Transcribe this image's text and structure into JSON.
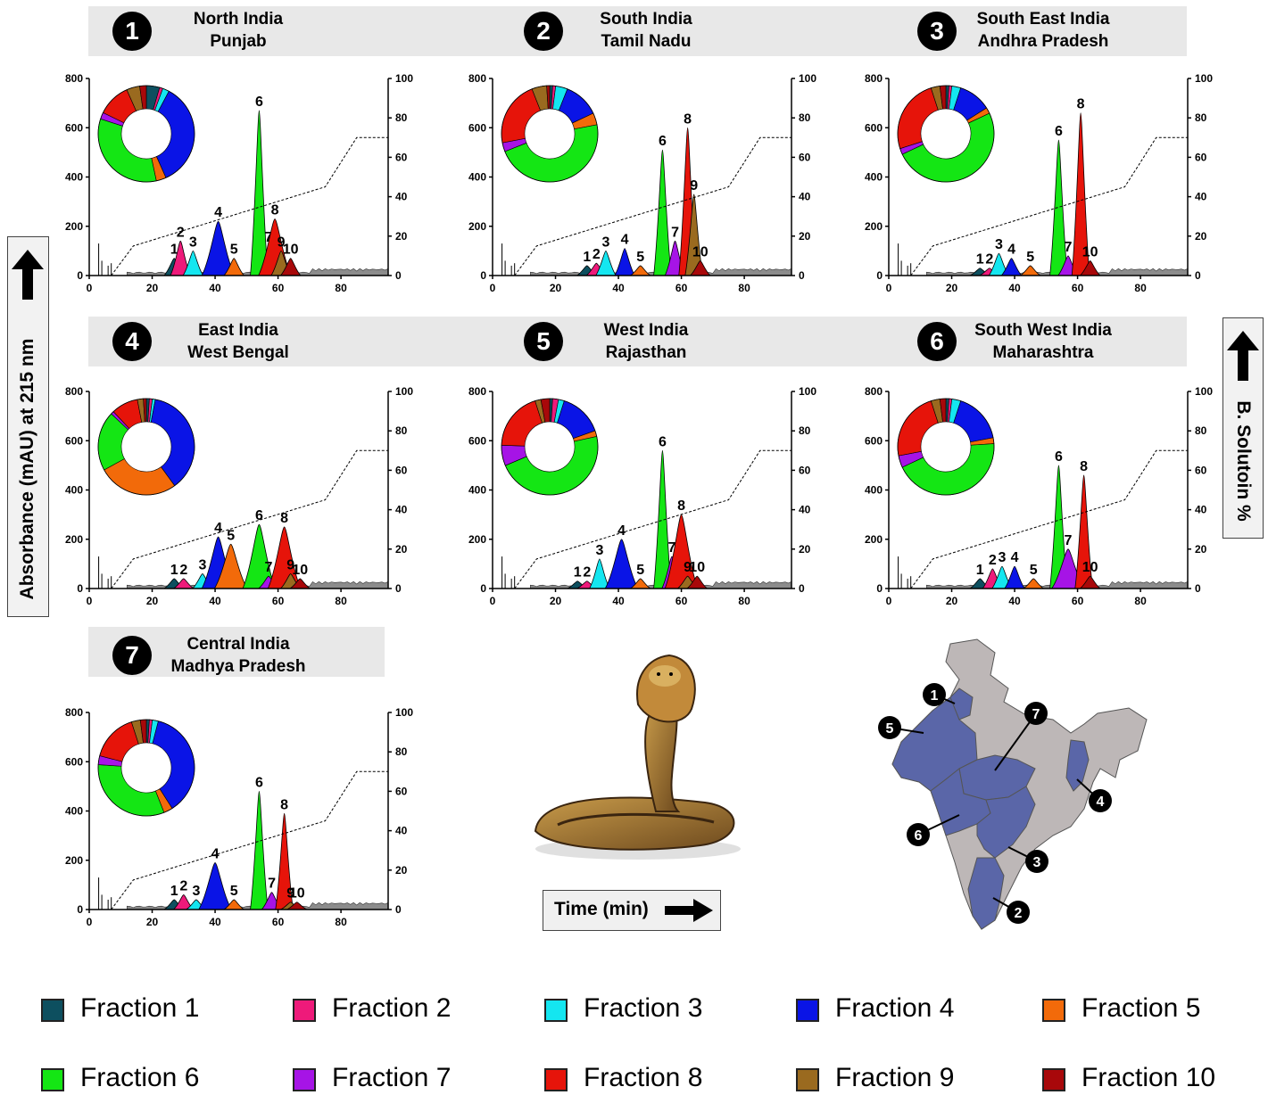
{
  "fraction_colors": [
    "#0d4f5f",
    "#ee1a7a",
    "#14e6f0",
    "#0a14e6",
    "#f26a0a",
    "#14e614",
    "#a614e6",
    "#e6140a",
    "#9a6a1f",
    "#a8080a"
  ],
  "legend": [
    {
      "label": "Fraction 1",
      "color": "#0d4f5f"
    },
    {
      "label": "Fraction 2",
      "color": "#ee1a7a"
    },
    {
      "label": "Fraction 3",
      "color": "#14e6f0"
    },
    {
      "label": "Fraction 4",
      "color": "#0a14e6"
    },
    {
      "label": "Fraction 5",
      "color": "#f26a0a"
    },
    {
      "label": "Fraction 6",
      "color": "#14e614"
    },
    {
      "label": "Fraction 7",
      "color": "#a614e6"
    },
    {
      "label": "Fraction 8",
      "color": "#e6140a"
    },
    {
      "label": "Fraction 9",
      "color": "#9a6a1f"
    },
    {
      "label": "Fraction 10",
      "color": "#a8080a"
    }
  ],
  "y_axis_label": "Absorbance (mAU) at 215 nm",
  "y2_axis_label": "B. Solutoin %",
  "x_axis_label": "Time (min)",
  "regions": [
    {
      "number": "1",
      "line1": "North India",
      "line2": "Punjab"
    },
    {
      "number": "2",
      "line1": "South India",
      "line2": "Tamil Nadu"
    },
    {
      "number": "3",
      "line1": "South East India",
      "line2": "Andhra Pradesh"
    },
    {
      "number": "4",
      "line1": "East India",
      "line2": "West Bengal"
    },
    {
      "number": "5",
      "line1": "West India",
      "line2": "Rajasthan"
    },
    {
      "number": "6",
      "line1": "South West India",
      "line2": "Maharashtra"
    },
    {
      "number": "7",
      "line1": "Central India",
      "line2": "Madhya Pradesh"
    }
  ],
  "map_labels": [
    "1",
    "2",
    "3",
    "4",
    "5",
    "6",
    "7"
  ],
  "chart_data": [
    {
      "type": "area",
      "region": "North India / Punjab",
      "x_ticks": [
        "0",
        "20",
        "40",
        "60",
        "80"
      ],
      "y_ticks": [
        "0",
        "200",
        "400",
        "600",
        "800"
      ],
      "y2_ticks": [
        "0",
        "20",
        "40",
        "60",
        "80",
        "100"
      ],
      "xlim": [
        0,
        95
      ],
      "ylim": [
        0,
        800
      ],
      "y2lim": [
        0,
        100
      ],
      "gradient": {
        "x": [
          7,
          14,
          75,
          85,
          95
        ],
        "y": [
          0,
          15,
          45,
          70,
          70
        ]
      },
      "peaks": [
        {
          "label": "1",
          "x": 27,
          "height": 70
        },
        {
          "label": "2",
          "x": 29,
          "height": 140
        },
        {
          "label": "3",
          "x": 33,
          "height": 100
        },
        {
          "label": "4",
          "x": 41,
          "height": 220
        },
        {
          "label": "5",
          "x": 46,
          "height": 70
        },
        {
          "label": "6",
          "x": 54,
          "height": 670
        },
        {
          "label": "7",
          "x": 57,
          "height": 120
        },
        {
          "label": "8",
          "x": 59,
          "height": 230
        },
        {
          "label": "9",
          "x": 61,
          "height": 100
        },
        {
          "label": "10",
          "x": 64,
          "height": 70
        }
      ],
      "donut": [
        4,
        1,
        2,
        32,
        3,
        30,
        2,
        10,
        4,
        2
      ]
    },
    {
      "type": "area",
      "region": "South India / Tamil Nadu",
      "x_ticks": [
        "0",
        "20",
        "40",
        "60",
        "80"
      ],
      "y_ticks": [
        "0",
        "200",
        "400",
        "600",
        "800"
      ],
      "y2_ticks": [
        "0",
        "20",
        "40",
        "60",
        "80",
        "100"
      ],
      "xlim": [
        0,
        95
      ],
      "ylim": [
        0,
        800
      ],
      "y2lim": [
        0,
        100
      ],
      "gradient": {
        "x": [
          7,
          14,
          75,
          85,
          95
        ],
        "y": [
          0,
          15,
          45,
          70,
          70
        ]
      },
      "peaks": [
        {
          "label": "1",
          "x": 30,
          "height": 40
        },
        {
          "label": "2",
          "x": 33,
          "height": 50
        },
        {
          "label": "3",
          "x": 36,
          "height": 100
        },
        {
          "label": "4",
          "x": 42,
          "height": 110
        },
        {
          "label": "5",
          "x": 47,
          "height": 40
        },
        {
          "label": "6",
          "x": 54,
          "height": 510
        },
        {
          "label": "7",
          "x": 58,
          "height": 140
        },
        {
          "label": "8",
          "x": 62,
          "height": 600
        },
        {
          "label": "9",
          "x": 64,
          "height": 330
        },
        {
          "label": "10",
          "x": 66,
          "height": 60
        }
      ],
      "donut": [
        1,
        1,
        4,
        12,
        4,
        47,
        3,
        22,
        5,
        1
      ]
    },
    {
      "type": "area",
      "region": "South East India / Andhra Pradesh",
      "x_ticks": [
        "0",
        "20",
        "40",
        "60",
        "80"
      ],
      "y_ticks": [
        "0",
        "200",
        "400",
        "600",
        "800"
      ],
      "y2_ticks": [
        "0",
        "20",
        "40",
        "60",
        "80",
        "100"
      ],
      "xlim": [
        0,
        95
      ],
      "ylim": [
        0,
        800
      ],
      "y2lim": [
        0,
        100
      ],
      "gradient": {
        "x": [
          7,
          14,
          75,
          85,
          95
        ],
        "y": [
          0,
          15,
          45,
          70,
          70
        ]
      },
      "peaks": [
        {
          "label": "1",
          "x": 29,
          "height": 30
        },
        {
          "label": "2",
          "x": 32,
          "height": 30
        },
        {
          "label": "3",
          "x": 35,
          "height": 90
        },
        {
          "label": "4",
          "x": 39,
          "height": 70
        },
        {
          "label": "5",
          "x": 45,
          "height": 40
        },
        {
          "label": "6",
          "x": 54,
          "height": 550
        },
        {
          "label": "7",
          "x": 57,
          "height": 80
        },
        {
          "label": "8",
          "x": 61,
          "height": 660
        },
        {
          "label": "10",
          "x": 64,
          "height": 60
        }
      ],
      "donut": [
        1,
        1,
        3,
        11,
        2,
        50,
        2,
        25,
        3,
        2
      ]
    },
    {
      "type": "area",
      "region": "East India / West Bengal",
      "x_ticks": [
        "0",
        "20",
        "40",
        "60",
        "80"
      ],
      "y_ticks": [
        "0",
        "200",
        "400",
        "600",
        "800"
      ],
      "y2_ticks": [
        "0",
        "20",
        "40",
        "60",
        "80",
        "100"
      ],
      "xlim": [
        0,
        95
      ],
      "ylim": [
        0,
        800
      ],
      "y2lim": [
        0,
        100
      ],
      "gradient": {
        "x": [
          7,
          14,
          75,
          85,
          95
        ],
        "y": [
          0,
          15,
          45,
          70,
          70
        ]
      },
      "peaks": [
        {
          "label": "1",
          "x": 27,
          "height": 40
        },
        {
          "label": "2",
          "x": 30,
          "height": 40
        },
        {
          "label": "3",
          "x": 36,
          "height": 60
        },
        {
          "label": "4",
          "x": 41,
          "height": 210
        },
        {
          "label": "5",
          "x": 45,
          "height": 180
        },
        {
          "label": "6",
          "x": 54,
          "height": 260
        },
        {
          "label": "7",
          "x": 57,
          "height": 50
        },
        {
          "label": "8",
          "x": 62,
          "height": 250
        },
        {
          "label": "9",
          "x": 64,
          "height": 60
        },
        {
          "label": "10",
          "x": 67,
          "height": 40
        }
      ],
      "donut": [
        1,
        1,
        1,
        37,
        27,
        20,
        1,
        9,
        2,
        1
      ]
    },
    {
      "type": "area",
      "region": "West India / Rajasthan",
      "x_ticks": [
        "0",
        "20",
        "40",
        "60",
        "80"
      ],
      "y_ticks": [
        "0",
        "200",
        "400",
        "600",
        "800"
      ],
      "y2_ticks": [
        "0",
        "20",
        "40",
        "60",
        "80",
        "100"
      ],
      "xlim": [
        0,
        95
      ],
      "ylim": [
        0,
        800
      ],
      "y2lim": [
        0,
        100
      ],
      "gradient": {
        "x": [
          7,
          14,
          75,
          85,
          95
        ],
        "y": [
          0,
          15,
          45,
          70,
          70
        ]
      },
      "peaks": [
        {
          "label": "1",
          "x": 27,
          "height": 30
        },
        {
          "label": "2",
          "x": 30,
          "height": 30
        },
        {
          "label": "3",
          "x": 34,
          "height": 120
        },
        {
          "label": "4",
          "x": 41,
          "height": 200
        },
        {
          "label": "5",
          "x": 47,
          "height": 40
        },
        {
          "label": "6",
          "x": 54,
          "height": 560
        },
        {
          "label": "7",
          "x": 57,
          "height": 130
        },
        {
          "label": "8",
          "x": 60,
          "height": 300
        },
        {
          "label": "9",
          "x": 62,
          "height": 50
        },
        {
          "label": "10",
          "x": 65,
          "height": 50
        }
      ],
      "donut": [
        1,
        2,
        2,
        15,
        2,
        48,
        7,
        20,
        2,
        3
      ]
    },
    {
      "type": "area",
      "region": "South West India / Maharashtra",
      "x_ticks": [
        "0",
        "20",
        "40",
        "60",
        "80"
      ],
      "y_ticks": [
        "0",
        "200",
        "400",
        "600",
        "800"
      ],
      "y2_ticks": [
        "0",
        "20",
        "40",
        "60",
        "80",
        "100"
      ],
      "xlim": [
        0,
        95
      ],
      "ylim": [
        0,
        800
      ],
      "y2lim": [
        0,
        100
      ],
      "gradient": {
        "x": [
          7,
          14,
          75,
          85,
          95
        ],
        "y": [
          0,
          15,
          45,
          70,
          70
        ]
      },
      "peaks": [
        {
          "label": "1",
          "x": 29,
          "height": 40
        },
        {
          "label": "2",
          "x": 33,
          "height": 80
        },
        {
          "label": "3",
          "x": 36,
          "height": 90
        },
        {
          "label": "4",
          "x": 40,
          "height": 90
        },
        {
          "label": "5",
          "x": 46,
          "height": 40
        },
        {
          "label": "6",
          "x": 54,
          "height": 500
        },
        {
          "label": "7",
          "x": 57,
          "height": 160
        },
        {
          "label": "8",
          "x": 62,
          "height": 460
        },
        {
          "label": "10",
          "x": 64,
          "height": 50
        }
      ],
      "donut": [
        1,
        1,
        3,
        17,
        2,
        44,
        4,
        23,
        3,
        2
      ]
    },
    {
      "type": "area",
      "region": "Central India / Madhya Pradesh",
      "x_ticks": [
        "0",
        "20",
        "40",
        "60",
        "80"
      ],
      "y_ticks": [
        "0",
        "200",
        "400",
        "600",
        "800"
      ],
      "y2_ticks": [
        "0",
        "20",
        "40",
        "60",
        "80",
        "100"
      ],
      "xlim": [
        0,
        95
      ],
      "ylim": [
        0,
        800
      ],
      "y2lim": [
        0,
        100
      ],
      "gradient": {
        "x": [
          7,
          14,
          75,
          85,
          95
        ],
        "y": [
          0,
          15,
          45,
          70,
          70
        ]
      },
      "peaks": [
        {
          "label": "1",
          "x": 27,
          "height": 40
        },
        {
          "label": "2",
          "x": 30,
          "height": 60
        },
        {
          "label": "3",
          "x": 34,
          "height": 40
        },
        {
          "label": "4",
          "x": 40,
          "height": 190
        },
        {
          "label": "5",
          "x": 46,
          "height": 40
        },
        {
          "label": "6",
          "x": 54,
          "height": 480
        },
        {
          "label": "7",
          "x": 58,
          "height": 70
        },
        {
          "label": "8",
          "x": 62,
          "height": 390
        },
        {
          "label": "9",
          "x": 64,
          "height": 30
        },
        {
          "label": "10",
          "x": 66,
          "height": 30
        }
      ],
      "donut": [
        1,
        1,
        2,
        37,
        3,
        32,
        3,
        16,
        3,
        2
      ]
    }
  ]
}
